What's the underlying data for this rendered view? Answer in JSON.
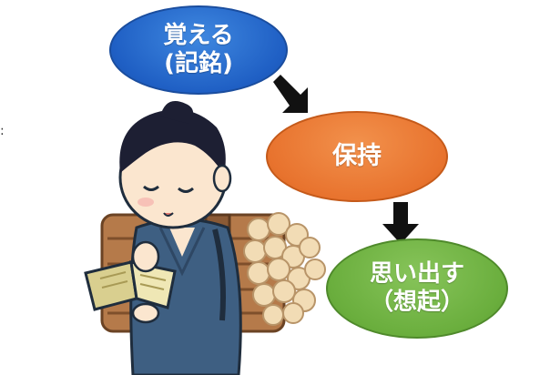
{
  "diagram": {
    "nodes": [
      {
        "id": "memorize",
        "label": "覚える\n(記銘)",
        "color": "#1f5fc4"
      },
      {
        "id": "retain",
        "label": "保持",
        "color": "#e8732e"
      },
      {
        "id": "recall",
        "label": "思い出す\n（想起）",
        "color": "#6aae3d"
      }
    ],
    "edges": [
      {
        "from": "memorize",
        "to": "retain"
      },
      {
        "from": "retain",
        "to": "recall"
      }
    ],
    "stray_mark": ":"
  },
  "illustration": {
    "subject": "boy-reading-book-carrying-firewood",
    "colors": {
      "hair": "#1d1f33",
      "skin": "#fbe6cf",
      "kimono": "#3e5f82",
      "book": "#d9cf8f",
      "firewood": "#b57a4a"
    }
  }
}
